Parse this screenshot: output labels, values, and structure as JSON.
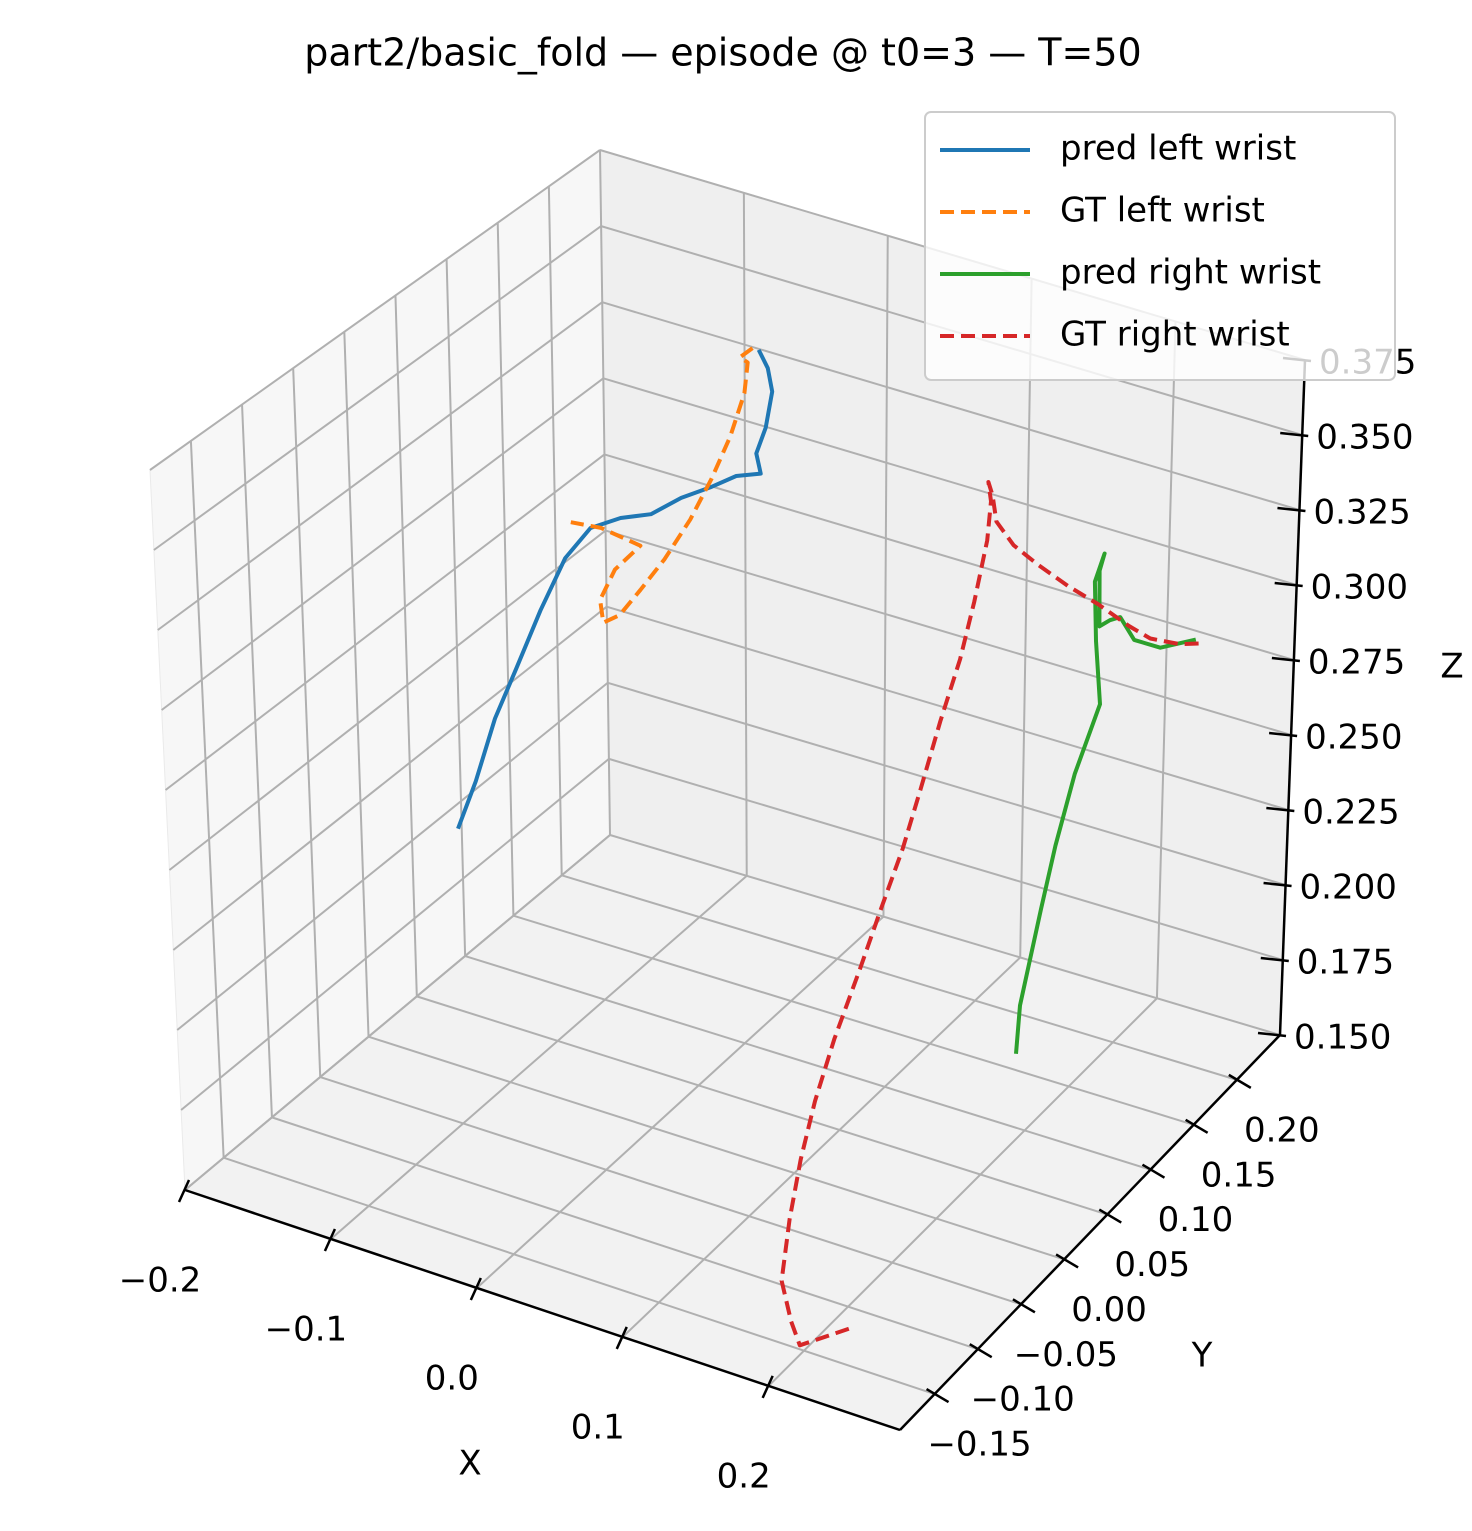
{
  "chart_data": {
    "type": "line3d",
    "title": "part2/basic_fold — episode @ t0=3 — T=50",
    "xlabel": "X",
    "ylabel": "Y",
    "zlabel": "Z",
    "xlim": [
      -0.2,
      0.29
    ],
    "ylim": [
      -0.19,
      0.25
    ],
    "zlim": [
      0.15,
      0.375
    ],
    "xticks": [
      {
        "value": -0.2,
        "label": "−0.2"
      },
      {
        "value": -0.1,
        "label": "−0.1"
      },
      {
        "value": 0,
        "label": "0.0"
      },
      0.1,
      0.2
    ],
    "yticks": [
      {
        "value": -0.15,
        "label": "−0.15"
      },
      {
        "value": -0.1,
        "label": "−0.10"
      },
      {
        "value": -0.05,
        "label": "−0.05"
      },
      {
        "value": 0,
        "label": "0.00"
      },
      0.05,
      {
        "value": 0.1,
        "label": "0.10"
      },
      0.15,
      {
        "value": 0.2,
        "label": "0.20"
      }
    ],
    "zticks": [
      {
        "value": 0.15,
        "label": "0.150"
      },
      0.175,
      {
        "value": 0.2,
        "label": "0.200"
      },
      0.225,
      {
        "value": 0.25,
        "label": "0.250"
      },
      0.275,
      {
        "value": 0.3,
        "label": "0.300"
      },
      0.325,
      {
        "value": 0.35,
        "label": "0.350"
      },
      0.375
    ],
    "grid": true,
    "legend": "upper right",
    "series": [
      {
        "name": "pred left wrist",
        "color": "#1f77b4",
        "linestyle": "solid",
        "x": [
          0.07,
          0.076,
          0.079,
          0.075,
          0.069,
          0.072,
          0.056,
          0.039,
          0.02,
          0.0,
          -0.02,
          -0.04,
          -0.057,
          -0.074,
          -0.091,
          -0.106,
          -0.12,
          -0.133
        ],
        "y": [
          0,
          0,
          0,
          0,
          0,
          0,
          0,
          0,
          0,
          0,
          0,
          0,
          0,
          0,
          0,
          0,
          0,
          0
        ],
        "z": [
          0.407,
          0.402,
          0.395,
          0.383,
          0.374,
          0.368,
          0.365,
          0.359,
          0.353,
          0.345,
          0.341,
          0.335,
          0.323,
          0.304,
          0.283,
          0.265,
          0.243,
          0.226
        ]
      },
      {
        "name": "GT left wrist",
        "color": "#ff7f0e",
        "linestyle": "dashed",
        "x": [
          0.066,
          0.058,
          0.063,
          0.061,
          0.052,
          0.04,
          0.026,
          0.009,
          -0.007,
          -0.021,
          -0.032,
          -0.034,
          -0.024,
          -0.007,
          -0.033,
          -0.053
        ],
        "y": [
          0,
          0,
          0,
          0,
          0,
          0,
          0,
          0,
          0,
          0,
          0,
          0,
          0,
          0,
          0,
          0
        ],
        "z": [
          0.407,
          0.403,
          0.402,
          0.392,
          0.377,
          0.362,
          0.347,
          0.332,
          0.32,
          0.31,
          0.306,
          0.313,
          0.324,
          0.334,
          0.336,
          0.335
        ]
      },
      {
        "name": "pred right wrist",
        "color": "#2ca02c",
        "linestyle": "solid",
        "x": [
          0.284,
          0.26,
          0.242,
          0.232,
          0.225,
          0.218,
          0.217,
          0.22,
          0.214,
          0.216,
          0.22,
          0.204,
          0.192,
          0.183,
          0.17,
          0.168
        ],
        "y": [
          0.14,
          0.14,
          0.14,
          0.14,
          0.14,
          0.14,
          0.14,
          0.14,
          0.14,
          0.14,
          0.14,
          0.14,
          0.14,
          0.14,
          0.14,
          0.14
        ],
        "z": [
          0.31,
          0.304,
          0.304,
          0.31,
          0.308,
          0.305,
          0.323,
          0.329,
          0.319,
          0.3,
          0.28,
          0.255,
          0.23,
          0.208,
          0.175,
          0.159
        ]
      },
      {
        "name": "GT right wrist",
        "color": "#d62728",
        "linestyle": "dashed",
        "x": [
          0.286,
          0.273,
          0.253,
          0.238,
          0.217,
          0.196,
          0.175,
          0.158,
          0.146,
          0.143,
          0.14,
          0.142,
          0.14,
          0.132,
          0.123,
          0.11,
          0.097,
          0.085,
          0.084,
          0.084,
          0.086,
          0.095,
          0.113,
          0.133,
          0.155,
          0.183,
          0.2,
          0.212,
          0.224
        ],
        "y": [
          0.14,
          0.14,
          0.14,
          0.14,
          0.14,
          0.14,
          0.14,
          0.14,
          0.14,
          0.14,
          0.14,
          0.14,
          0.14,
          0.14,
          0.14,
          0.14,
          0.14,
          0.14,
          0.118,
          0.096,
          0.065,
          0.03,
          -0.014,
          -0.058,
          -0.102,
          -0.137,
          -0.155,
          -0.146,
          -0.137
        ],
        "z": [
          0.309,
          0.307,
          0.306,
          0.308,
          0.312,
          0.315,
          0.319,
          0.323,
          0.329,
          0.337,
          0.341,
          0.335,
          0.322,
          0.301,
          0.281,
          0.259,
          0.235,
          0.214,
          0.2,
          0.187,
          0.173,
          0.164,
          0.16,
          0.156,
          0.152,
          0.153,
          0.153,
          0.155,
          0.157
        ]
      }
    ]
  }
}
